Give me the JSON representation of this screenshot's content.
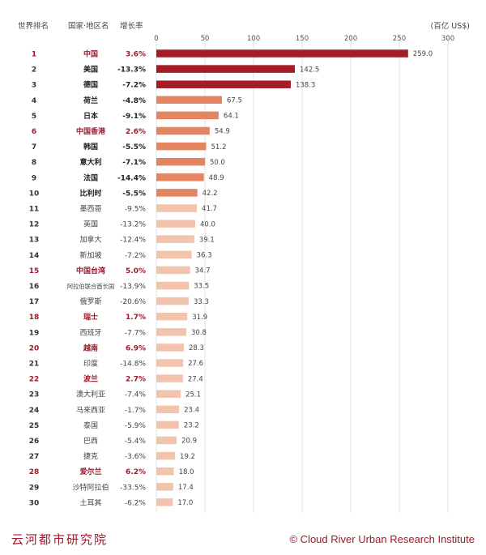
{
  "header": {
    "rank": "世界排名",
    "country": "国家·地区名",
    "growth": "增长率",
    "unit": "(百亿 US$)"
  },
  "footer": {
    "left": "云河都市研究院",
    "right": "© Cloud River Urban Research Institute"
  },
  "colors": {
    "highlight": "#a0192a",
    "dark": "#a51c24",
    "mid": "#e38561",
    "light": "#f3c4ad"
  },
  "chart_data": {
    "type": "bar",
    "orientation": "horizontal",
    "xlim": [
      0,
      300
    ],
    "ticks": [
      0,
      50,
      100,
      150,
      200,
      250,
      300
    ],
    "grid": true,
    "rows": [
      {
        "rank": "1",
        "name": "中国",
        "growth": "3.6%",
        "value": 259.0,
        "value_label": "259.0",
        "style": "highlight",
        "tier": "dark"
      },
      {
        "rank": "2",
        "name": "美国",
        "growth": "-13.3%",
        "value": 142.5,
        "value_label": "142.5",
        "style": "bold",
        "tier": "dark"
      },
      {
        "rank": "3",
        "name": "德国",
        "growth": "-7.2%",
        "value": 138.3,
        "value_label": "138.3",
        "style": "bold",
        "tier": "dark"
      },
      {
        "rank": "4",
        "name": "荷兰",
        "growth": "-4.8%",
        "value": 67.5,
        "value_label": "67.5",
        "style": "bold",
        "tier": "mid"
      },
      {
        "rank": "5",
        "name": "日本",
        "growth": "-9.1%",
        "value": 64.1,
        "value_label": "64.1",
        "style": "bold",
        "tier": "mid"
      },
      {
        "rank": "6",
        "name": "中国香港",
        "growth": "2.6%",
        "value": 54.9,
        "value_label": "54.9",
        "style": "highlight",
        "tier": "mid"
      },
      {
        "rank": "7",
        "name": "韩国",
        "growth": "-5.5%",
        "value": 51.2,
        "value_label": "51.2",
        "style": "bold",
        "tier": "mid"
      },
      {
        "rank": "8",
        "name": "意大利",
        "growth": "-7.1%",
        "value": 50.0,
        "value_label": "50.0",
        "style": "bold",
        "tier": "mid"
      },
      {
        "rank": "9",
        "name": "法国",
        "growth": "-14.4%",
        "value": 48.9,
        "value_label": "48.9",
        "style": "bold",
        "tier": "mid"
      },
      {
        "rank": "10",
        "name": "比利时",
        "growth": "-5.5%",
        "value": 42.2,
        "value_label": "42.2",
        "style": "bold",
        "tier": "mid"
      },
      {
        "rank": "11",
        "name": "墨西哥",
        "growth": "-9.5%",
        "value": 41.7,
        "value_label": "41.7",
        "style": "normal",
        "tier": "light"
      },
      {
        "rank": "12",
        "name": "英国",
        "growth": "-13.2%",
        "value": 40.0,
        "value_label": "40.0",
        "style": "normal",
        "tier": "light"
      },
      {
        "rank": "13",
        "name": "加拿大",
        "growth": "-12.4%",
        "value": 39.1,
        "value_label": "39.1",
        "style": "normal",
        "tier": "light"
      },
      {
        "rank": "14",
        "name": "新加坡",
        "growth": "-7.2%",
        "value": 36.3,
        "value_label": "36.3",
        "style": "normal",
        "tier": "light"
      },
      {
        "rank": "15",
        "name": "中国台湾",
        "growth": "5.0%",
        "value": 34.7,
        "value_label": "34.7",
        "style": "highlight",
        "tier": "light"
      },
      {
        "rank": "16",
        "name": "阿拉伯联合酋长国",
        "growth": "-13.9%",
        "value": 33.5,
        "value_label": "33.5",
        "style": "normal",
        "tier": "light"
      },
      {
        "rank": "17",
        "name": "俄罗斯",
        "growth": "-20.6%",
        "value": 33.3,
        "value_label": "33.3",
        "style": "normal",
        "tier": "light"
      },
      {
        "rank": "18",
        "name": "瑞士",
        "growth": "1.7%",
        "value": 31.9,
        "value_label": "31.9",
        "style": "highlight",
        "tier": "light"
      },
      {
        "rank": "19",
        "name": "西班牙",
        "growth": "-7.7%",
        "value": 30.8,
        "value_label": "30.8",
        "style": "normal",
        "tier": "light"
      },
      {
        "rank": "20",
        "name": "越南",
        "growth": "6.9%",
        "value": 28.3,
        "value_label": "28.3",
        "style": "highlight",
        "tier": "light"
      },
      {
        "rank": "21",
        "name": "印度",
        "growth": "-14.8%",
        "value": 27.6,
        "value_label": "27.6",
        "style": "normal",
        "tier": "light"
      },
      {
        "rank": "22",
        "name": "波兰",
        "growth": "2.7%",
        "value": 27.4,
        "value_label": "27.4",
        "style": "highlight",
        "tier": "light"
      },
      {
        "rank": "23",
        "name": "澳大利亚",
        "growth": "-7.4%",
        "value": 25.1,
        "value_label": "25.1",
        "style": "normal",
        "tier": "light"
      },
      {
        "rank": "24",
        "name": "马来西亚",
        "growth": "-1.7%",
        "value": 23.4,
        "value_label": "23.4",
        "style": "normal",
        "tier": "light"
      },
      {
        "rank": "25",
        "name": "泰国",
        "growth": "-5.9%",
        "value": 23.2,
        "value_label": "23.2",
        "style": "normal",
        "tier": "light"
      },
      {
        "rank": "26",
        "name": "巴西",
        "growth": "-5.4%",
        "value": 20.9,
        "value_label": "20.9",
        "style": "normal",
        "tier": "light"
      },
      {
        "rank": "27",
        "name": "捷克",
        "growth": "-3.6%",
        "value": 19.2,
        "value_label": "19.2",
        "style": "normal",
        "tier": "light"
      },
      {
        "rank": "28",
        "name": "爱尔兰",
        "growth": "6.2%",
        "value": 18.0,
        "value_label": "18.0",
        "style": "highlight",
        "tier": "light"
      },
      {
        "rank": "29",
        "name": "沙特阿拉伯",
        "growth": "-33.5%",
        "value": 17.4,
        "value_label": "17.4",
        "style": "normal",
        "tier": "light"
      },
      {
        "rank": "30",
        "name": "土耳其",
        "growth": "-6.2%",
        "value": 17.0,
        "value_label": "17.0",
        "style": "normal",
        "tier": "light"
      }
    ]
  }
}
